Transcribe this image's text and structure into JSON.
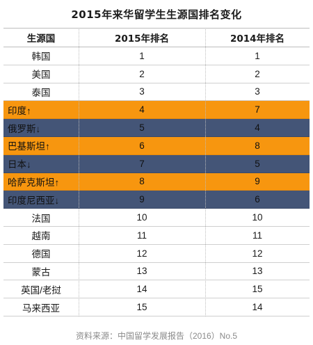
{
  "title": "2015年来华留学生生源国排名变化",
  "columns": [
    "生源国",
    "2015年排名",
    "2014年排名"
  ],
  "rows": [
    {
      "country": "韩国",
      "rank2015": "1",
      "rank2014": "1",
      "highlight": ""
    },
    {
      "country": "美国",
      "rank2015": "2",
      "rank2014": "2",
      "highlight": ""
    },
    {
      "country": "泰国",
      "rank2015": "3",
      "rank2014": "3",
      "highlight": ""
    },
    {
      "country": "印度↑",
      "rank2015": "4",
      "rank2014": "7",
      "highlight": "orange"
    },
    {
      "country": "俄罗斯↓",
      "rank2015": "5",
      "rank2014": "4",
      "highlight": "blue"
    },
    {
      "country": "巴基斯坦↑",
      "rank2015": "6",
      "rank2014": "8",
      "highlight": "orange"
    },
    {
      "country": "日本↓",
      "rank2015": "7",
      "rank2014": "5",
      "highlight": "blue"
    },
    {
      "country": "哈萨克斯坦↑",
      "rank2015": "8",
      "rank2014": "9",
      "highlight": "orange"
    },
    {
      "country": "印度尼西亚↓",
      "rank2015": "9",
      "rank2014": "6",
      "highlight": "blue"
    },
    {
      "country": "法国",
      "rank2015": "10",
      "rank2014": "10",
      "highlight": ""
    },
    {
      "country": "越南",
      "rank2015": "11",
      "rank2014": "11",
      "highlight": ""
    },
    {
      "country": "德国",
      "rank2015": "12",
      "rank2014": "12",
      "highlight": ""
    },
    {
      "country": "蒙古",
      "rank2015": "13",
      "rank2014": "13",
      "highlight": ""
    },
    {
      "country": "英国/老挝",
      "rank2015": "14",
      "rank2014": "15",
      "highlight": ""
    },
    {
      "country": "马来西亚",
      "rank2015": "15",
      "rank2014": "14",
      "highlight": ""
    }
  ],
  "colors": {
    "up": "#f7960f",
    "down": "#445577"
  },
  "source": "资料来源：中国留学发展报告（2016）No.5"
}
